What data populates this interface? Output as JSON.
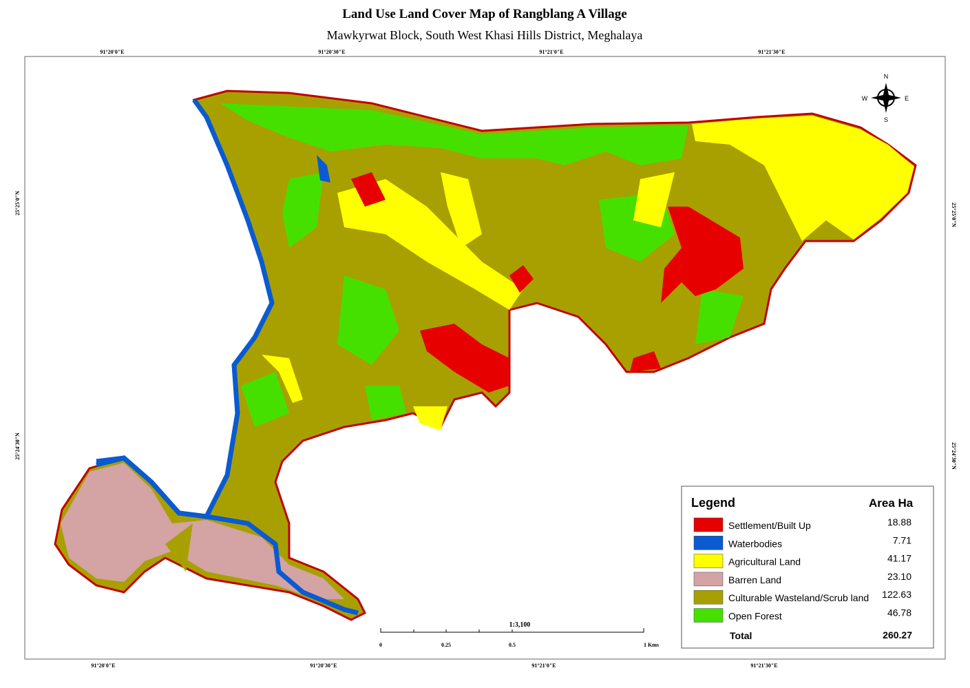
{
  "title": "Land Use Land Cover Map of Rangblang A Village",
  "subtitle": "Mawkyrwat Block, South West Khasi Hills District, Meghalaya",
  "graticule": {
    "top": [
      "91°20'0\"E",
      "91°20'30\"E",
      "91°21'0\"E",
      "91°21'30\"E"
    ],
    "bottom": [
      "91°20'0\"E",
      "91°20'30\"E",
      "91°21'0\"E",
      "91°21'30\"E"
    ],
    "left": [
      "25°25'0\"N",
      "25°24'30\"N"
    ],
    "right": [
      "25°25'0\"N",
      "25°24'30\"N"
    ]
  },
  "north_arrow": {
    "n": "N",
    "e": "E",
    "s": "S",
    "w": "W"
  },
  "scale": {
    "ratio": "1:3,100",
    "labels": [
      "0",
      "0.25",
      "0.5",
      "1 Kms"
    ]
  },
  "legend": {
    "title": "Legend",
    "area_header": "Area Ha",
    "items": [
      {
        "label": "Settlement/Built Up",
        "area": "18.88",
        "color": "#e60000"
      },
      {
        "label": "Waterbodies",
        "area": "7.71",
        "color": "#0a5ad2"
      },
      {
        "label": "Agricultural Land",
        "area": "41.17",
        "color": "#ffff00"
      },
      {
        "label": "Barren Land",
        "area": "23.10",
        "color": "#d4a3a3"
      },
      {
        "label": "Culturable Wasteland/Scrub land",
        "area": "122.63",
        "color": "#a8a000"
      },
      {
        "label": "Open Forest",
        "area": "46.78",
        "color": "#46e000"
      }
    ],
    "total_label": "Total",
    "total": "260.27"
  }
}
